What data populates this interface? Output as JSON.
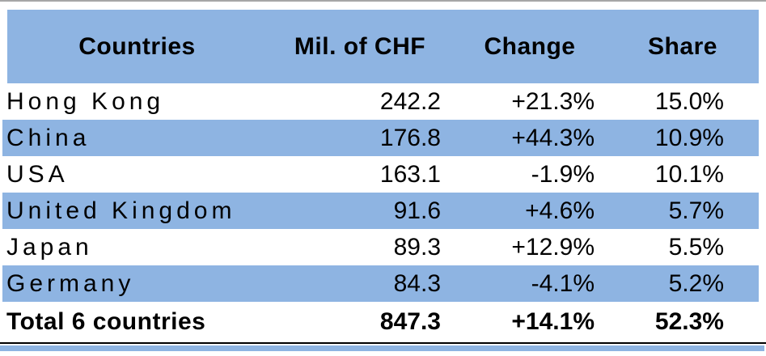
{
  "table": {
    "columns": [
      "Countries",
      "Mil. of CHF",
      "Change",
      "Share"
    ],
    "rows": [
      {
        "country": "Hong Kong",
        "value": "242.2",
        "change": "+21.3%",
        "share": "15.0%"
      },
      {
        "country": "China",
        "value": "176.8",
        "change": "+44.3%",
        "share": "10.9%"
      },
      {
        "country": "USA",
        "value": "163.1",
        "change": "-1.9%",
        "share": "10.1%"
      },
      {
        "country": "United Kingdom",
        "value": "91.6",
        "change": "+4.6%",
        "share": "5.7%"
      },
      {
        "country": "Japan",
        "value": "89.3",
        "change": "+12.9%",
        "share": "5.5%"
      },
      {
        "country": "Germany",
        "value": "84.3",
        "change": "-4.1%",
        "share": "5.2%"
      }
    ],
    "total": {
      "country": "Total 6 countries",
      "value": "847.3",
      "change": "+14.1%",
      "share": "52.3%"
    }
  },
  "colors": {
    "band_blue": "#8EB4E2",
    "top_rule": "#A6A6A6",
    "bottom_rule": "#000000",
    "text": "#000000"
  },
  "chart_data": {
    "type": "table",
    "title": "",
    "columns": [
      "Countries",
      "Mil. of CHF",
      "Change",
      "Share"
    ],
    "rows": [
      [
        "Hong Kong",
        242.2,
        "+21.3%",
        "15.0%"
      ],
      [
        "China",
        176.8,
        "+44.3%",
        "10.9%"
      ],
      [
        "USA",
        163.1,
        "-1.9%",
        "10.1%"
      ],
      [
        "United Kingdom",
        91.6,
        "+4.6%",
        "5.7%"
      ],
      [
        "Japan",
        89.3,
        "+12.9%",
        "5.5%"
      ],
      [
        "Germany",
        84.3,
        "-4.1%",
        "5.2%"
      ],
      [
        "Total 6 countries",
        847.3,
        "+14.1%",
        "52.3%"
      ]
    ],
    "layout_hints": {
      "header_background": "#8EB4E2",
      "row_banding": [
        "white",
        "blue"
      ],
      "numeric_alignment": "right",
      "total_row_bold": true
    }
  }
}
